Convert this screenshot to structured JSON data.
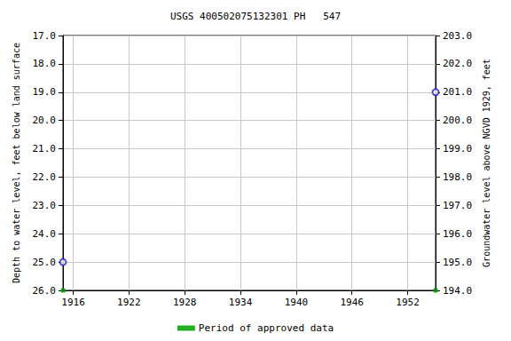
{
  "chart_data": {
    "type": "scatter",
    "title": "USGS 400502075132301 PH   547",
    "y_label": "Depth to water level, feet below land surface",
    "y2_label": "Groundwater level above NGVD 1929, feet",
    "x": [
      1914.9,
      1955.0
    ],
    "xlim": [
      1914.9,
      1955.0
    ],
    "xticks": [
      1916,
      1922,
      1928,
      1934,
      1940,
      1946,
      1952
    ],
    "ylim": [
      26,
      17
    ],
    "yticks": [
      {
        "value": 17,
        "label": "17.0"
      },
      {
        "value": 18,
        "label": "18.0"
      },
      {
        "value": 19,
        "label": "19.0"
      },
      {
        "value": 20,
        "label": "20.0"
      },
      {
        "value": 21,
        "label": "21.0"
      },
      {
        "value": 22,
        "label": "22.0"
      },
      {
        "value": 23,
        "label": "23.0"
      },
      {
        "value": 24,
        "label": "24.0"
      },
      {
        "value": 25,
        "label": "25.0"
      },
      {
        "value": 26,
        "label": "26.0"
      }
    ],
    "y2lim": [
      194,
      203
    ],
    "y2ticks": [
      {
        "value": 194,
        "label": "194.0"
      },
      {
        "value": 195,
        "label": "195.0"
      },
      {
        "value": 196,
        "label": "196.0"
      },
      {
        "value": 197,
        "label": "197.0"
      },
      {
        "value": 198,
        "label": "198.0"
      },
      {
        "value": 199,
        "label": "199.0"
      },
      {
        "value": 200,
        "label": "200.0"
      },
      {
        "value": 201,
        "label": "201.0"
      },
      {
        "value": 202,
        "label": "202.0"
      },
      {
        "value": 203,
        "label": "203.0"
      }
    ],
    "grid": true,
    "legend": "bottom",
    "series": [
      {
        "color": "#1f1fd0",
        "marker": "circle",
        "values": [
          25.0,
          19.0
        ]
      },
      {
        "name": "Period of approved data",
        "color": "#00a000",
        "marker": "square",
        "values": [
          26,
          26
        ]
      }
    ]
  }
}
